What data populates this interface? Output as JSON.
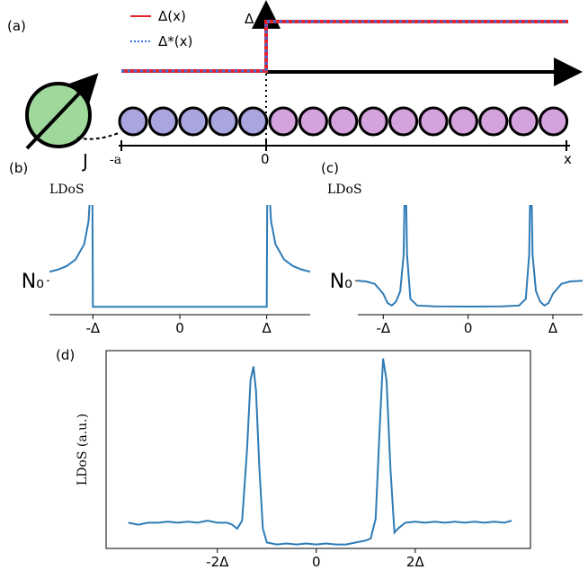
{
  "figure": {
    "panel_a": {
      "label": "(a)",
      "legend": [
        "Δ(x)",
        "Δ*(x)"
      ],
      "y_axis_label": "Δ",
      "x_tick_labels": [
        "-a",
        "0"
      ],
      "x_axis_label": "x",
      "coupling_label": "J"
    }
  },
  "chart_data": [
    {
      "type": "line",
      "panel_label": "(b)",
      "y_label": "LDoS",
      "color": "#2e7bb6",
      "x": [
        -1.5,
        -1.4,
        -1.3,
        -1.2,
        -1.1,
        -1.05,
        -1.02,
        -1.01,
        -1.0,
        -0.99,
        -0.5,
        0,
        0.5,
        0.99,
        1.0,
        1.01,
        1.02,
        1.05,
        1.1,
        1.2,
        1.3,
        1.4,
        1.5
      ],
      "values": [
        1.342,
        1.429,
        1.565,
        1.809,
        2.4,
        3.28,
        5.07,
        7.1,
        0,
        0,
        0,
        0,
        0,
        0,
        0,
        7.1,
        5.07,
        3.28,
        2.4,
        1.809,
        1.565,
        1.429,
        1.342
      ],
      "xlim": [
        -1.5,
        1.5
      ],
      "ylim": [
        -0.3,
        3.9
      ],
      "xticks": [
        {
          "value": -1,
          "label": "-Δ"
        },
        0,
        {
          "value": 1,
          "label": "Δ"
        }
      ],
      "yticks": [
        {
          "value": 1,
          "label": "N₀"
        }
      ]
    },
    {
      "type": "line",
      "panel_label": "(c)",
      "y_label": "LDoS",
      "color": "#2e7bb6",
      "x": [
        -1.3,
        -1.2,
        -1.1,
        -1.0,
        -0.95,
        -0.9,
        -0.85,
        -0.8,
        -0.76,
        -0.74,
        -0.72,
        -0.68,
        -0.6,
        -0.4,
        0,
        0.4,
        0.6,
        0.68,
        0.72,
        0.74,
        0.76,
        0.8,
        0.85,
        0.9,
        0.95,
        1.0,
        1.1,
        1.2,
        1.35
      ],
      "values": [
        1.0,
        0.97,
        0.88,
        0.5,
        0.15,
        0.05,
        0.2,
        0.6,
        2.0,
        6,
        2.0,
        0.3,
        0.05,
        0.02,
        0.01,
        0.02,
        0.05,
        0.3,
        2.0,
        6,
        2.0,
        0.6,
        0.2,
        0.05,
        0.15,
        0.5,
        0.88,
        0.97,
        1.0
      ],
      "xlim": [
        -1.3,
        1.35
      ],
      "ylim": [
        -0.3,
        3.9
      ],
      "xticks": [
        {
          "value": -1,
          "label": "-Δ"
        },
        0,
        {
          "value": 1,
          "label": "Δ"
        }
      ],
      "yticks": [
        {
          "value": 1,
          "label": "N₀"
        }
      ]
    },
    {
      "type": "line",
      "panel_label": "(d)",
      "y_label": "LDoS (a.u.)",
      "color": "#2e7bb6",
      "x": [
        -3.8,
        -3.6,
        -3.4,
        -3.2,
        -3.0,
        -2.8,
        -2.6,
        -2.4,
        -2.2,
        -2.0,
        -1.8,
        -1.7,
        -1.6,
        -1.5,
        -1.4,
        -1.33,
        -1.27,
        -1.22,
        -1.15,
        -1.08,
        -1.0,
        -0.8,
        -0.6,
        -0.4,
        -0.2,
        0,
        0.2,
        0.4,
        0.6,
        0.8,
        1.0,
        1.1,
        1.2,
        1.28,
        1.35,
        1.42,
        1.5,
        1.58,
        1.65,
        1.8,
        2.0,
        2.2,
        2.4,
        2.6,
        2.8,
        3.0,
        3.2,
        3.4,
        3.6,
        3.8,
        3.95
      ],
      "values": [
        0.13,
        0.12,
        0.13,
        0.13,
        0.135,
        0.13,
        0.135,
        0.13,
        0.14,
        0.13,
        0.13,
        0.12,
        0.1,
        0.14,
        0.5,
        0.85,
        0.92,
        0.8,
        0.4,
        0.1,
        0.03,
        0.02,
        0.025,
        0.02,
        0.025,
        0.02,
        0.025,
        0.02,
        0.02,
        0.03,
        0.04,
        0.05,
        0.15,
        0.6,
        0.96,
        0.85,
        0.4,
        0.08,
        0.1,
        0.13,
        0.135,
        0.13,
        0.135,
        0.13,
        0.135,
        0.13,
        0.135,
        0.13,
        0.135,
        0.13,
        0.14
      ],
      "xlim": [
        -4.25,
        4.33
      ],
      "ylim": [
        0,
        1
      ],
      "xticks": [
        {
          "value": -2,
          "label": "-2Δ"
        },
        0,
        {
          "value": 2,
          "label": "2Δ"
        }
      ]
    }
  ]
}
